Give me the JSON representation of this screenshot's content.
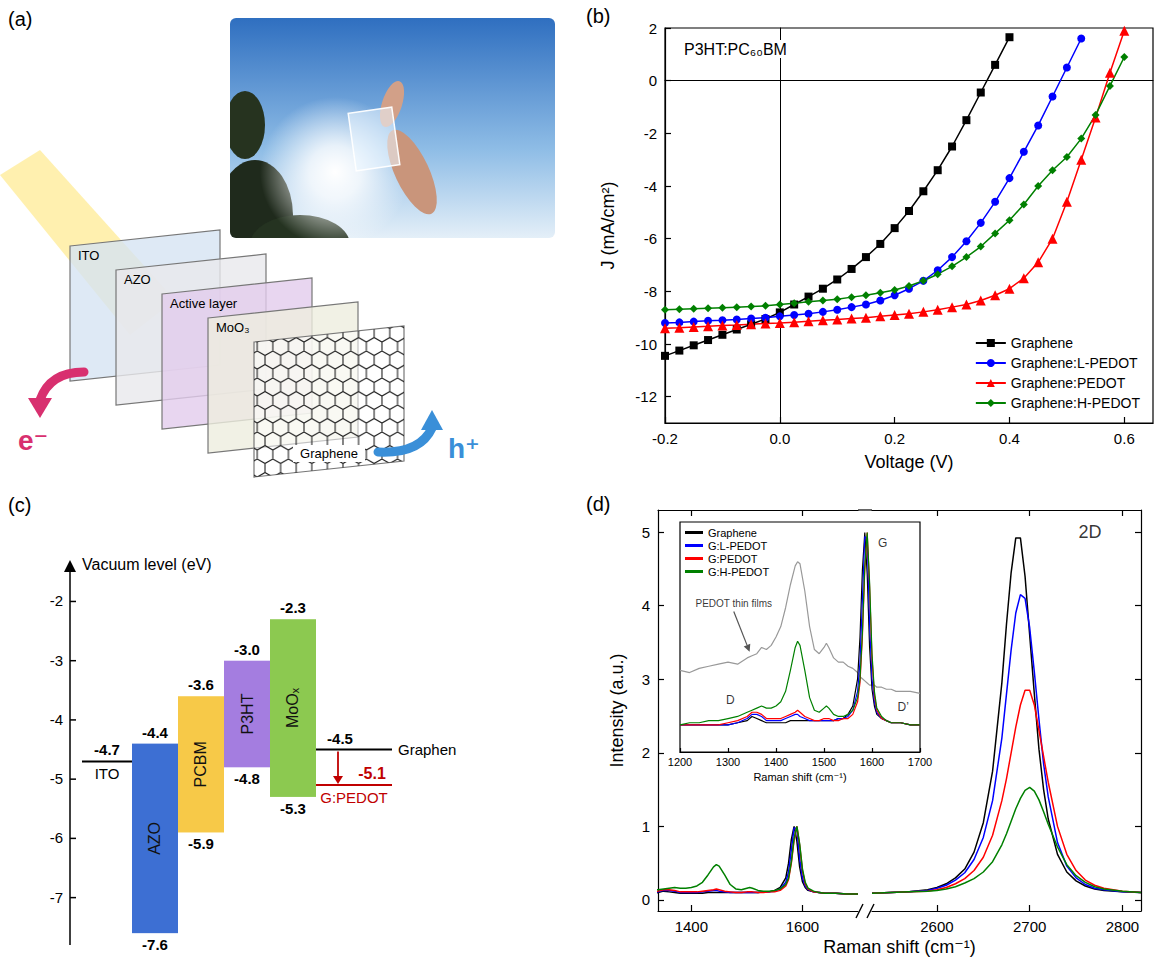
{
  "panel_a": {
    "panel": "(a)",
    "layers": [
      "ITO",
      "AZO",
      "Active layer",
      "MoO₃",
      "Graphene"
    ],
    "carriers": [
      {
        "text": "e⁻",
        "color": "#d8306f"
      },
      {
        "text": "h⁺",
        "color": "#3a8fd8"
      }
    ]
  },
  "chart_data": [
    {
      "panel": "(b)",
      "type": "line",
      "title": "P3HT:PC₆₀BM",
      "xlabel": "Voltage (V)",
      "ylabel": "J (mA/cm²)",
      "xlim": [
        -0.2,
        0.65
      ],
      "xticks": [
        -0.2,
        {
          "value": 0,
          "label": "0.0"
        },
        0.2,
        0.4,
        0.6
      ],
      "ylim": [
        -13,
        2
      ],
      "yticks": [
        -12,
        -10,
        -8,
        -6,
        -4,
        -2,
        0,
        2
      ],
      "grid": false,
      "legend": "lower right",
      "x": [
        -0.2,
        -0.175,
        -0.15,
        -0.125,
        -0.1,
        -0.075,
        -0.05,
        -0.025,
        0,
        0.025,
        0.05,
        0.075,
        0.1,
        0.125,
        0.15,
        0.175,
        0.2,
        0.225,
        0.25,
        0.275,
        0.3,
        0.325,
        0.35,
        0.375,
        0.4,
        0.425,
        0.45,
        0.475,
        0.5,
        0.525,
        0.55,
        0.575,
        0.6
      ],
      "series": [
        {
          "name": "Graphene",
          "color": "#000000",
          "marker": "square",
          "values": [
            -10.45,
            -10.25,
            -10.05,
            -9.85,
            -9.65,
            -9.45,
            -9.25,
            -9.05,
            -8.8,
            -8.5,
            -8.2,
            -7.9,
            -7.55,
            -7.15,
            -6.7,
            -6.2,
            -5.6,
            -4.95,
            -4.2,
            -3.4,
            -2.5,
            -1.5,
            -0.45,
            0.6,
            1.65,
            null,
            null,
            null,
            null,
            null,
            null,
            null,
            null
          ]
        },
        {
          "name": "Graphene:L-PEDOT",
          "color": "#0000ff",
          "marker": "circle",
          "values": [
            -9.2,
            -9.18,
            -9.15,
            -9.12,
            -9.1,
            -9.07,
            -9.03,
            -9.0,
            -8.95,
            -8.9,
            -8.85,
            -8.78,
            -8.7,
            -8.6,
            -8.5,
            -8.35,
            -8.15,
            -7.9,
            -7.6,
            -7.2,
            -6.7,
            -6.1,
            -5.4,
            -4.6,
            -3.7,
            -2.7,
            -1.7,
            -0.6,
            0.5,
            1.6,
            null,
            null,
            null
          ]
        },
        {
          "name": "Graphene:PEDOT",
          "color": "#ff0000",
          "marker": "triangle",
          "values": [
            -9.4,
            -9.38,
            -9.35,
            -9.33,
            -9.3,
            -9.28,
            -9.25,
            -9.22,
            -9.2,
            -9.17,
            -9.14,
            -9.1,
            -9.07,
            -9.03,
            -9.0,
            -8.95,
            -8.9,
            -8.85,
            -8.78,
            -8.7,
            -8.6,
            -8.5,
            -8.35,
            -8.15,
            -7.9,
            -7.5,
            -6.9,
            -6.0,
            -4.6,
            -3.0,
            -1.4,
            0.3,
            1.9
          ]
        },
        {
          "name": "Graphene:H-PEDOT",
          "color": "#008000",
          "marker": "diamond",
          "values": [
            -8.7,
            -8.68,
            -8.66,
            -8.64,
            -8.62,
            -8.6,
            -8.58,
            -8.55,
            -8.5,
            -8.45,
            -8.4,
            -8.35,
            -8.3,
            -8.22,
            -8.15,
            -8.05,
            -7.95,
            -7.8,
            -7.6,
            -7.35,
            -7.05,
            -6.7,
            -6.3,
            -5.8,
            -5.3,
            -4.7,
            -4.0,
            -3.4,
            -2.9,
            -2.2,
            -1.3,
            -0.2,
            0.9
          ]
        }
      ]
    },
    {
      "panel": "(d)",
      "type": "line",
      "xlabel": "Raman shift (cm⁻¹)",
      "ylabel": "Intensity (a.u.)",
      "xlim": [
        [
          1340,
          1700
        ],
        [
          2530,
          2820
        ]
      ],
      "xticks": [
        [
          1400,
          1600
        ],
        [
          2600,
          2700,
          2800
        ]
      ],
      "ylim": [
        -0.15,
        5.3
      ],
      "yticks": [
        0,
        1,
        2,
        3,
        4,
        5
      ],
      "grid": false,
      "x": [
        [
          1200,
          1220,
          1240,
          1260,
          1280,
          1300,
          1320,
          1340,
          1350,
          1360,
          1370,
          1380,
          1390,
          1400,
          1410,
          1420,
          1430,
          1440,
          1445,
          1450,
          1460,
          1470,
          1480,
          1490,
          1500,
          1505,
          1510,
          1520,
          1530,
          1540,
          1550,
          1560,
          1570,
          1575,
          1580,
          1585,
          1590,
          1595,
          1600,
          1605,
          1610,
          1620,
          1630,
          1640,
          1650,
          1660,
          1680,
          1700
        ],
        [
          2530,
          2550,
          2570,
          2590,
          2600,
          2610,
          2620,
          2630,
          2640,
          2650,
          2660,
          2670,
          2675,
          2680,
          2685,
          2690,
          2695,
          2700,
          2705,
          2710,
          2715,
          2720,
          2730,
          2740,
          2750,
          2760,
          2770,
          2780,
          2800,
          2820
        ]
      ],
      "series": [
        {
          "name": "Graphene",
          "color": "#000000",
          "values": [
            [
              0.08,
              0.08,
              0.08,
              0.08,
              0.08,
              0.08,
              0.09,
              0.1,
              0.12,
              0.11,
              0.1,
              0.09,
              0.09,
              0.09,
              0.09,
              0.09,
              0.1,
              0.1,
              0.1,
              0.1,
              0.1,
              0.1,
              0.1,
              0.1,
              0.1,
              0.1,
              0.1,
              0.1,
              0.11,
              0.11,
              0.13,
              0.17,
              0.3,
              0.5,
              0.82,
              1.0,
              0.8,
              0.45,
              0.25,
              0.17,
              0.13,
              0.11,
              0.1,
              0.09,
              0.09,
              0.09,
              0.08,
              0.08
            ],
            [
              0.09,
              0.1,
              0.11,
              0.14,
              0.17,
              0.22,
              0.3,
              0.42,
              0.65,
              1.05,
              1.75,
              2.95,
              3.75,
              4.45,
              4.92,
              4.92,
              4.4,
              3.6,
              2.8,
              2.05,
              1.5,
              1.1,
              0.62,
              0.38,
              0.26,
              0.19,
              0.15,
              0.13,
              0.11,
              0.1
            ]
          ]
        },
        {
          "name": "G:L-PEDOT",
          "color": "#0000ff",
          "values": [
            [
              0.08,
              0.08,
              0.08,
              0.08,
              0.08,
              0.08,
              0.09,
              0.11,
              0.13,
              0.13,
              0.12,
              0.1,
              0.1,
              0.1,
              0.1,
              0.11,
              0.12,
              0.13,
              0.13,
              0.12,
              0.11,
              0.1,
              0.1,
              0.1,
              0.1,
              0.1,
              0.1,
              0.1,
              0.11,
              0.11,
              0.12,
              0.15,
              0.24,
              0.38,
              0.68,
              0.98,
              0.97,
              0.56,
              0.3,
              0.19,
              0.14,
              0.11,
              0.1,
              0.09,
              0.09,
              0.09,
              0.08,
              0.08
            ],
            [
              0.09,
              0.1,
              0.11,
              0.13,
              0.16,
              0.2,
              0.27,
              0.37,
              0.55,
              0.85,
              1.35,
              2.2,
              2.8,
              3.4,
              3.9,
              4.15,
              4.1,
              3.7,
              3.1,
              2.45,
              1.85,
              1.4,
              0.78,
              0.46,
              0.3,
              0.21,
              0.16,
              0.14,
              0.11,
              0.1
            ]
          ]
        },
        {
          "name": "G:PEDOT",
          "color": "#ff0000",
          "values": [
            [
              0.08,
              0.08,
              0.08,
              0.08,
              0.08,
              0.09,
              0.1,
              0.12,
              0.14,
              0.14,
              0.13,
              0.11,
              0.11,
              0.11,
              0.11,
              0.12,
              0.13,
              0.14,
              0.15,
              0.14,
              0.12,
              0.11,
              0.1,
              0.1,
              0.11,
              0.11,
              0.11,
              0.1,
              0.1,
              0.11,
              0.11,
              0.13,
              0.19,
              0.28,
              0.5,
              0.82,
              1.0,
              0.74,
              0.4,
              0.22,
              0.15,
              0.11,
              0.1,
              0.09,
              0.09,
              0.09,
              0.08,
              0.08
            ],
            [
              0.09,
              0.1,
              0.11,
              0.12,
              0.14,
              0.17,
              0.22,
              0.29,
              0.4,
              0.58,
              0.88,
              1.35,
              1.65,
              2.0,
              2.35,
              2.65,
              2.85,
              2.85,
              2.65,
              2.3,
              1.95,
              1.6,
              1.0,
              0.62,
              0.4,
              0.27,
              0.2,
              0.16,
              0.12,
              0.1
            ]
          ]
        },
        {
          "name": "G:H-PEDOT",
          "color": "#008000",
          "values": [
            [
              0.08,
              0.09,
              0.09,
              0.1,
              0.1,
              0.11,
              0.12,
              0.14,
              0.15,
              0.16,
              0.17,
              0.16,
              0.16,
              0.17,
              0.19,
              0.24,
              0.34,
              0.45,
              0.48,
              0.46,
              0.34,
              0.21,
              0.15,
              0.14,
              0.16,
              0.17,
              0.16,
              0.13,
              0.12,
              0.12,
              0.13,
              0.15,
              0.21,
              0.3,
              0.52,
              0.84,
              1.0,
              0.76,
              0.42,
              0.24,
              0.16,
              0.12,
              0.1,
              0.09,
              0.09,
              0.09,
              0.08,
              0.08
            ],
            [
              0.09,
              0.1,
              0.11,
              0.12,
              0.13,
              0.15,
              0.18,
              0.23,
              0.29,
              0.38,
              0.52,
              0.75,
              0.9,
              1.07,
              1.24,
              1.38,
              1.49,
              1.53,
              1.48,
              1.36,
              1.2,
              1.03,
              0.72,
              0.48,
              0.33,
              0.24,
              0.18,
              0.15,
              0.12,
              0.1
            ]
          ]
        }
      ],
      "annotations": [
        {
          "text": "2D",
          "x": 2765,
          "y": 5.0
        }
      ]
    },
    {
      "type": "line",
      "xlabel": "Raman shift (cm⁻¹)",
      "xlim": [
        1200,
        1700
      ],
      "xticks": [
        1200,
        1300,
        1400,
        1500,
        1600,
        1700
      ],
      "ylim": [
        -0.05,
        1.05
      ],
      "tick_labels": "x",
      "legend": "upper left",
      "series": [
        {
          "color": "#999999",
          "values": [
            0.34,
            0.33,
            0.35,
            0.36,
            0.37,
            0.38,
            0.37,
            0.4,
            0.41,
            0.42,
            0.45,
            0.44,
            0.46,
            0.5,
            0.55,
            0.64,
            0.75,
            0.84,
            0.86,
            0.85,
            0.72,
            0.55,
            0.44,
            0.42,
            0.45,
            0.47,
            0.45,
            0.4,
            0.38,
            0.38,
            0.36,
            0.35,
            0.33,
            0.31,
            0.3,
            0.29,
            0.28,
            0.27,
            0.27,
            0.27,
            0.26,
            0.26,
            0.25,
            0.25,
            0.24,
            0.24,
            0.24,
            0.23
          ]
        }
      ],
      "annotations": [
        {
          "text": "G",
          "x": 1622,
          "y": 0.95
        },
        {
          "text": "D",
          "x": 1305,
          "y": 0.2
        },
        {
          "text": "D’",
          "x": 1665,
          "y": 0.165
        },
        {
          "text": "PEDOT thin films",
          "x": 1312,
          "y": 0.66,
          "arrow_to": [
            1345,
            0.43
          ]
        }
      ]
    }
  ],
  "panel_c": {
    "panel": "(c)",
    "axis_title": "Vacuum level (eV)",
    "ylim": [
      -7.8,
      -1.3
    ],
    "ticks": [
      -2,
      -3,
      -4,
      -5,
      -6,
      -7
    ],
    "bands": [
      {
        "name": "AZO",
        "top": -4.4,
        "bottom": -7.6,
        "color": "#3d6fd3"
      },
      {
        "name": "PCBM",
        "top": -3.6,
        "bottom": -5.9,
        "color": "#f7c948"
      },
      {
        "name": "P3HT",
        "top": {
          "value": -3,
          "label": "-3.0"
        },
        "bottom": -4.8,
        "color": "#a47de0"
      },
      {
        "name": "MoOₓ",
        "top": -2.3,
        "bottom": -5.3,
        "color": "#8cc950"
      }
    ],
    "levels": [
      {
        "name": "ITO",
        "value": -4.7,
        "color": "#000000"
      },
      {
        "name": "Graphen",
        "value": -4.5,
        "color": "#000000"
      },
      {
        "name": "G:PEDOT",
        "value": -5.1,
        "color": "#c00000"
      }
    ]
  }
}
